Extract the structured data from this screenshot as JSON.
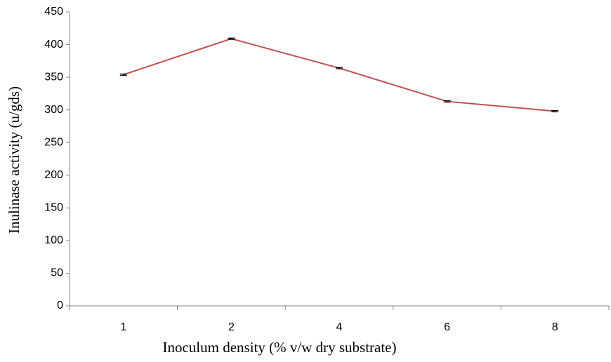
{
  "chart_data": {
    "type": "line",
    "x_label": "Inoculum density (% v/w dry substrate)",
    "y_label": "Inulinase activity (u/gds)",
    "categories": [
      "1",
      "2",
      "4",
      "6",
      "8"
    ],
    "series": [
      {
        "color": "#c0504d",
        "values": [
          354,
          409,
          364,
          313,
          298
        ],
        "errors": [
          1,
          1,
          1,
          1,
          1
        ]
      }
    ],
    "ylim": [
      0,
      450
    ],
    "yticks": [
      0,
      50,
      100,
      150,
      200,
      250,
      300,
      350,
      400,
      450
    ]
  }
}
